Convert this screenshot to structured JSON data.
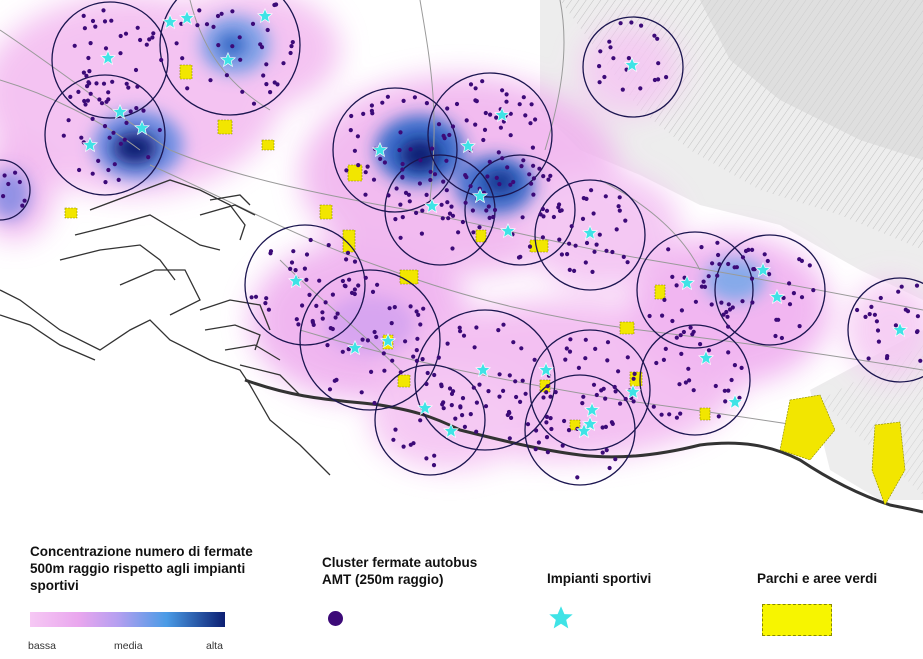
{
  "legend": {
    "density_title": "Concentrazione numero di fermate 500m raggio rispetto agli impianti sportivi",
    "density_title_lines": [
      "Concentrazione numero di fermate",
      "500m raggio rispetto agli impianti",
      "sportivi"
    ],
    "scale_low": "bassa",
    "scale_mid": "media",
    "scale_high": "alta",
    "cluster_title_lines": [
      "Cluster fermate autobus",
      "AMT (250m raggio)"
    ],
    "sports_title": "Impianti sportivi",
    "parks_title": "Parchi e aree verdi"
  },
  "colors": {
    "density_low": "#f6c8f4",
    "density_mid": "#4a9be6",
    "density_high": "#0c1f72",
    "bus_stop": "#3c0a78",
    "sports_facility": "#3fe3e6",
    "park": "#f7f500",
    "coastline": "#333333"
  },
  "icons": {
    "bus_stop": "purple-dot-icon",
    "sports_facility": "cyan-star-icon",
    "park": "yellow-dashed-rect-icon"
  }
}
